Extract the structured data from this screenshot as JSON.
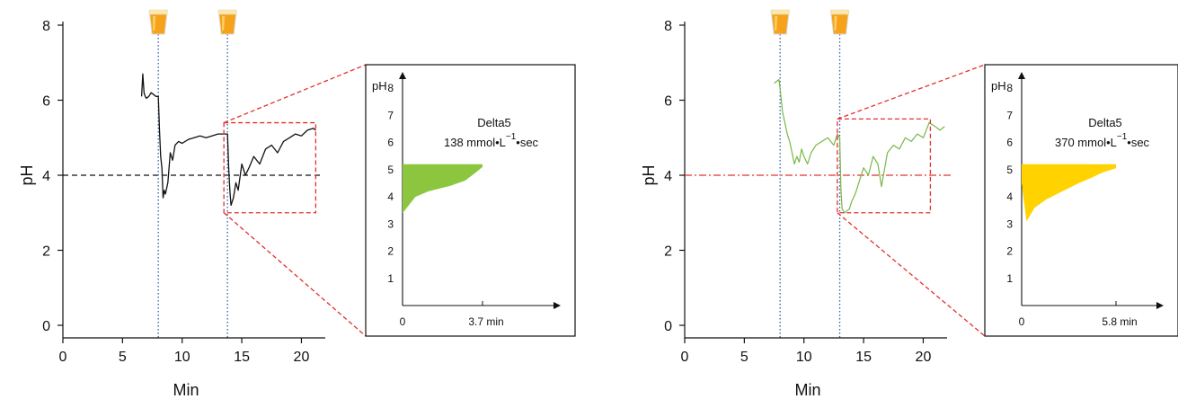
{
  "colors": {
    "left_trace": "#111111",
    "right_trace": "#7ab648",
    "left_fill": "#8cc63f",
    "right_fill": "#ffd200",
    "dashed_red": "#e53030",
    "blue_dot": "#2a5fa8"
  },
  "chart_data": [
    {
      "id": "left",
      "type": "line",
      "xlabel": "Min",
      "ylabel": "pH",
      "xlim": [
        0,
        22
      ],
      "ylim": [
        0,
        8
      ],
      "xticks": [
        "0",
        "5",
        "10",
        "15",
        "20"
      ],
      "yticks": [
        "0",
        "2",
        "4",
        "6",
        "8"
      ],
      "threshold": 4,
      "threshold_style": "dashed",
      "drink_markers_x": [
        8,
        13.8
      ],
      "zoom_box": {
        "x": [
          13.5,
          21.2
        ],
        "y": [
          3,
          5.4
        ]
      },
      "series": [
        {
          "x": [
            6.6,
            6.7,
            6.8,
            6.9,
            7.0,
            7.2,
            7.4,
            7.6,
            7.8,
            8.0,
            8.1,
            8.2,
            8.3,
            8.4,
            8.5,
            8.6,
            8.8,
            9.0,
            9.2,
            9.4,
            9.7,
            10.0,
            10.5,
            11.0,
            11.5,
            12.0,
            12.5,
            13.0,
            13.5,
            13.8,
            13.9,
            14.0,
            14.1,
            14.3,
            14.5,
            14.7,
            15.0,
            15.3,
            15.6,
            16.0,
            16.5,
            17.0,
            17.5,
            18.0,
            18.5,
            19.0,
            19.5,
            20.0,
            20.5,
            21.0,
            21.2
          ],
          "y": [
            6.1,
            6.7,
            6.2,
            6.1,
            6.05,
            6.1,
            6.2,
            6.15,
            6.1,
            6.1,
            5.2,
            4.5,
            4.2,
            3.4,
            3.6,
            3.5,
            3.8,
            4.6,
            4.4,
            4.8,
            4.9,
            4.85,
            4.95,
            5.0,
            5.05,
            5.0,
            5.05,
            5.1,
            5.1,
            5.1,
            4.2,
            3.6,
            3.2,
            3.4,
            3.8,
            3.6,
            4.3,
            4.0,
            4.2,
            4.5,
            4.3,
            4.7,
            4.8,
            4.6,
            4.9,
            5.0,
            5.1,
            5.05,
            5.2,
            5.25,
            5.2
          ]
        }
      ],
      "inset": {
        "type": "area",
        "ylabel": "pH",
        "ylim": [
          0,
          8
        ],
        "yticks": [
          "1",
          "2",
          "3",
          "4",
          "5",
          "6",
          "7",
          "8"
        ],
        "xtick_start": "0",
        "xtick_end": "3.7 min",
        "x_end": 3.7,
        "annotation_title": "Delta5",
        "annotation_value": "138 mmol•L",
        "annotation_sup": "−1",
        "annotation_unit": "•sec",
        "area": {
          "x": [
            0,
            0,
            0.2,
            0.6,
            1.2,
            2.2,
            2.9,
            3.4,
            3.7,
            3.7,
            0
          ],
          "y": [
            5.2,
            3.4,
            3.6,
            4.0,
            4.2,
            4.4,
            4.6,
            4.9,
            5.1,
            5.2,
            5.2
          ]
        }
      }
    },
    {
      "id": "right",
      "type": "line",
      "xlabel": "Min",
      "ylabel": "pH",
      "xlim": [
        0,
        22
      ],
      "ylim": [
        0,
        8
      ],
      "xticks": [
        "0",
        "5",
        "10",
        "15",
        "20"
      ],
      "yticks": [
        "0",
        "2",
        "4",
        "6",
        "8"
      ],
      "threshold": 4,
      "threshold_style": "dashdot",
      "drink_markers_x": [
        8,
        13
      ],
      "zoom_box": {
        "x": [
          12.8,
          20.6
        ],
        "y": [
          3,
          5.5
        ]
      },
      "series": [
        {
          "x": [
            7.5,
            7.7,
            7.9,
            8.0,
            8.1,
            8.2,
            8.4,
            8.6,
            8.8,
            9.0,
            9.2,
            9.4,
            9.6,
            9.8,
            10.0,
            10.3,
            10.6,
            11.0,
            11.5,
            12.0,
            12.5,
            12.8,
            13.0,
            13.1,
            13.2,
            13.4,
            13.6,
            13.8,
            14.0,
            14.3,
            14.6,
            15.0,
            15.4,
            15.8,
            16.2,
            16.5,
            17.0,
            17.5,
            18.0,
            18.5,
            19.0,
            19.5,
            20.0,
            20.5,
            21.0,
            21.4,
            21.8
          ],
          "y": [
            6.45,
            6.5,
            6.55,
            6.3,
            6.0,
            5.7,
            5.4,
            5.1,
            4.9,
            4.6,
            4.3,
            4.5,
            4.35,
            4.7,
            4.5,
            4.3,
            4.6,
            4.8,
            4.9,
            5.0,
            4.8,
            5.1,
            5.0,
            3.6,
            3.1,
            3.0,
            3.05,
            3.1,
            3.3,
            3.5,
            3.8,
            4.2,
            4.0,
            4.5,
            4.3,
            3.7,
            4.6,
            4.8,
            4.7,
            5.0,
            4.9,
            5.1,
            5.0,
            5.4,
            5.3,
            5.2,
            5.3
          ]
        }
      ],
      "inset": {
        "type": "area",
        "ylabel": "pH",
        "ylim": [
          0,
          8
        ],
        "yticks": [
          "1",
          "2",
          "3",
          "4",
          "5",
          "6",
          "7",
          "8"
        ],
        "xtick_start": "0",
        "xtick_end": "5.8 min",
        "x_end": 5.8,
        "annotation_title": "Delta5",
        "annotation_value": "370 mmol•L",
        "annotation_sup": "−1",
        "annotation_unit": "•sec",
        "area": {
          "x": [
            0,
            0,
            0.3,
            0.8,
            1.5,
            2.5,
            3.5,
            4.3,
            5.0,
            5.8,
            5.8,
            0
          ],
          "y": [
            5.2,
            4.5,
            3.1,
            3.6,
            3.9,
            4.2,
            4.5,
            4.7,
            4.9,
            5.05,
            5.2,
            5.2
          ]
        }
      }
    }
  ]
}
